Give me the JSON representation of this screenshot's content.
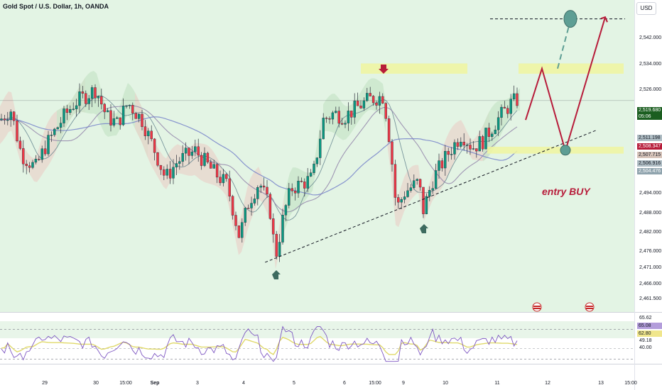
{
  "header": {
    "title": "Gold Spot / U.S. Dollar, 1h, OANDA",
    "currency": "USD"
  },
  "price_axis": {
    "ticks": [
      "2,542.000",
      "2,534.000",
      "2,526.000",
      "2,494.000",
      "2,488.000",
      "2,482.000",
      "2,476.000",
      "2,471.000",
      "2,466.000",
      "2,461.500"
    ]
  },
  "price_badges": {
    "last": "2,519.680",
    "countdown": "05:06",
    "levels": [
      "2,511.198",
      "2,508.347",
      "2,507.715",
      "2,506.916",
      "2,504.476"
    ]
  },
  "rsi_axis": {
    "ticks": [
      "65.62",
      "65.08",
      "62.80",
      "49.18",
      "40.00"
    ]
  },
  "time_axis": {
    "labels": [
      "29",
      "30",
      "15:00",
      "Sep",
      "3",
      "4",
      "5",
      "6",
      "15:00",
      "9",
      "10",
      "11",
      "12",
      "13",
      "15:00"
    ]
  },
  "annotations": {
    "entry_label": "entry BUY"
  },
  "colors": {
    "up": "#089981",
    "down": "#f23645",
    "annotation": "#b71c3a",
    "zone": "#f0f5a0",
    "target": "#5e9e94",
    "rsi_line": "#7e57c2",
    "rsi_ma": "#e0d96b"
  },
  "chart_data": {
    "type": "candlestick",
    "symbol": "Gold Spot / U.S. Dollar",
    "interval": "1h",
    "ylim": [
      2458,
      2549
    ],
    "last_price": 2519.68,
    "resistance_zone": [
      2527.5,
      2530.5
    ],
    "target_zone": [
      2527.5,
      2530.5
    ],
    "support_zone": [
      2504.2,
      2506.2
    ],
    "target_level": 2543.5,
    "trendline": [
      {
        "x": 0.418,
        "y": 2472.5
      },
      {
        "x": 0.94,
        "y": 2511
      }
    ],
    "rsi": {
      "overbought": 65.62,
      "oversold": 40.0,
      "last": 65.08,
      "ma": 62.8
    }
  }
}
